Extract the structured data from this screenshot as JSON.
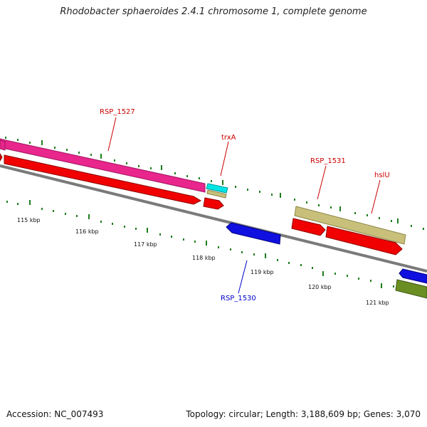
{
  "title": "Rhodobacter sphaeroides 2.4.1 chromosome 1, complete genome",
  "footer": {
    "accession": "Accession: NC_007493",
    "summary": "Topology: circular; Length: 3,188,609 bp; Genes: 3,070"
  },
  "colors": {
    "backbone": "#7a7a7a",
    "tick": "#1e7d1e",
    "magenta_gene": "#e8268c",
    "red_gene": "#f00000",
    "cyan_gene": "#00e5e5",
    "khaki_gene": "#c8c07a",
    "blue_gene": "#1010e0",
    "olive_gene": "#6b8e23",
    "label_red": "#cc0000",
    "label_blue": "#0000cc"
  },
  "scale_labels": [
    "115 kbp",
    "116 kbp",
    "117 kbp",
    "118 kbp",
    "119 kbp",
    "120 kbp",
    "121 kbp"
  ],
  "gene_labels": [
    {
      "id": "rsp1527",
      "text": "RSP_1527",
      "color": "#cc0000"
    },
    {
      "id": "trxa",
      "text": "trxA",
      "color": "#cc0000"
    },
    {
      "id": "rsp1531",
      "text": "RSP_1531",
      "color": "#cc0000"
    },
    {
      "id": "hslu",
      "text": "hslU",
      "color": "#cc0000"
    },
    {
      "id": "rsp1530",
      "text": "RSP_1530",
      "color": "#0000cc"
    }
  ]
}
